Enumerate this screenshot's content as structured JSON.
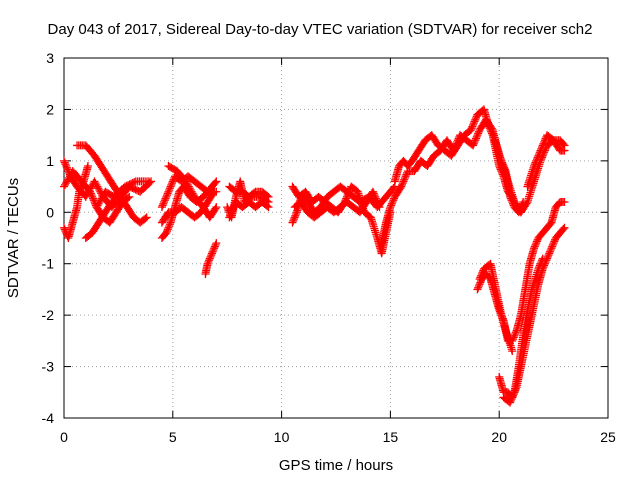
{
  "chart_data": {
    "type": "scatter",
    "title": "Day 043 of 2017, Sidereal Day-to-day VTEC variation (SDTVAR) for receiver sch2",
    "xlabel": "GPS time / hours",
    "ylabel": "SDTVAR / TECUs",
    "xlim": [
      0,
      25
    ],
    "ylim": [
      -4,
      3
    ],
    "xticks": [
      0,
      5,
      10,
      15,
      20,
      25
    ],
    "yticks": [
      -4,
      -3,
      -2,
      -1,
      0,
      1,
      2,
      3
    ],
    "grid": true,
    "marker": "plus",
    "color": "#ff0000",
    "tracks": [
      [
        [
          0.0,
          1.0
        ],
        [
          0.3,
          0.7
        ],
        [
          0.6,
          0.5
        ],
        [
          1.0,
          0.3
        ],
        [
          1.4,
          0.6
        ],
        [
          1.8,
          0.3
        ],
        [
          2.2,
          0.1
        ],
        [
          2.6,
          0.3
        ],
        [
          3.0,
          0.5
        ],
        [
          3.5,
          0.4
        ],
        [
          4.0,
          0.6
        ]
      ],
      [
        [
          0.0,
          0.5
        ],
        [
          0.4,
          0.8
        ],
        [
          0.8,
          0.6
        ],
        [
          1.2,
          0.4
        ],
        [
          1.5,
          0.1
        ],
        [
          1.9,
          0.4
        ],
        [
          2.3,
          0.3
        ],
        [
          2.8,
          0.5
        ],
        [
          3.3,
          0.6
        ],
        [
          3.9,
          0.6
        ]
      ],
      [
        [
          0.0,
          -0.3
        ],
        [
          0.2,
          -0.5
        ],
        [
          0.4,
          -0.2
        ],
        [
          0.6,
          0.1
        ],
        [
          0.7,
          0.4
        ],
        [
          0.9,
          0.6
        ],
        [
          1.1,
          0.9
        ]
      ],
      [
        [
          0.6,
          1.3
        ],
        [
          1.0,
          1.3
        ],
        [
          1.4,
          1.1
        ],
        [
          1.7,
          0.9
        ],
        [
          2.0,
          0.7
        ],
        [
          2.3,
          0.5
        ],
        [
          2.6,
          0.3
        ],
        [
          2.9,
          0.1
        ],
        [
          3.2,
          -0.1
        ],
        [
          3.5,
          -0.2
        ],
        [
          3.8,
          -0.1
        ]
      ],
      [
        [
          1.0,
          -0.5
        ],
        [
          1.3,
          -0.4
        ],
        [
          1.6,
          -0.2
        ],
        [
          1.9,
          0.0
        ],
        [
          2.2,
          0.2
        ],
        [
          2.5,
          0.3
        ],
        [
          2.8,
          0.4
        ]
      ],
      [
        [
          1.5,
          0.1
        ],
        [
          1.8,
          -0.1
        ],
        [
          2.1,
          -0.2
        ],
        [
          2.4,
          0.0
        ],
        [
          2.7,
          0.2
        ],
        [
          3.0,
          0.3
        ]
      ],
      [
        [
          4.5,
          -0.5
        ],
        [
          4.7,
          -0.4
        ],
        [
          4.9,
          -0.2
        ],
        [
          5.1,
          0.1
        ],
        [
          5.3,
          0.4
        ],
        [
          5.5,
          0.5
        ],
        [
          5.8,
          0.3
        ],
        [
          6.1,
          0.2
        ],
        [
          6.4,
          0.3
        ],
        [
          6.8,
          0.5
        ],
        [
          7.0,
          0.6
        ]
      ],
      [
        [
          4.5,
          0.1
        ],
        [
          4.7,
          0.3
        ],
        [
          4.9,
          0.5
        ],
        [
          5.1,
          0.7
        ],
        [
          5.4,
          0.6
        ],
        [
          5.7,
          0.7
        ],
        [
          6.0,
          0.6
        ],
        [
          6.3,
          0.5
        ],
        [
          6.6,
          0.4
        ],
        [
          7.0,
          0.4
        ]
      ],
      [
        [
          4.5,
          -0.2
        ],
        [
          4.8,
          0.0
        ],
        [
          5.1,
          0.0
        ],
        [
          5.4,
          0.1
        ],
        [
          5.7,
          0.0
        ],
        [
          6.0,
          -0.1
        ],
        [
          6.3,
          0.0
        ],
        [
          6.6,
          0.2
        ],
        [
          6.9,
          0.4
        ]
      ],
      [
        [
          4.8,
          0.9
        ],
        [
          5.2,
          0.8
        ],
        [
          5.6,
          0.6
        ],
        [
          6.0,
          0.3
        ],
        [
          6.4,
          0.1
        ],
        [
          6.7,
          -0.1
        ],
        [
          7.0,
          0.1
        ]
      ],
      [
        [
          6.5,
          -1.2
        ],
        [
          6.6,
          -1.0
        ],
        [
          6.7,
          -0.9
        ],
        [
          6.8,
          -0.8
        ],
        [
          6.9,
          -0.7
        ],
        [
          7.0,
          -0.6
        ]
      ],
      [
        [
          7.5,
          0.1
        ],
        [
          7.7,
          -0.1
        ],
        [
          7.9,
          0.3
        ],
        [
          8.1,
          0.6
        ],
        [
          8.3,
          0.2
        ],
        [
          8.6,
          0.3
        ],
        [
          9.0,
          0.3
        ],
        [
          9.4,
          0.2
        ]
      ],
      [
        [
          7.6,
          0.5
        ],
        [
          7.9,
          0.4
        ],
        [
          8.2,
          0.4
        ],
        [
          8.5,
          0.3
        ],
        [
          8.8,
          0.4
        ],
        [
          9.1,
          0.4
        ],
        [
          9.4,
          0.3
        ]
      ],
      [
        [
          7.6,
          -0.1
        ],
        [
          7.9,
          0.2
        ],
        [
          8.2,
          0.1
        ],
        [
          8.5,
          0.2
        ],
        [
          8.8,
          0.1
        ],
        [
          9.1,
          0.2
        ],
        [
          9.4,
          0.1
        ]
      ],
      [
        [
          10.5,
          -0.2
        ],
        [
          10.7,
          0.0
        ],
        [
          10.9,
          0.3
        ],
        [
          11.2,
          0.2
        ],
        [
          11.5,
          0.0
        ],
        [
          11.8,
          0.1
        ],
        [
          12.1,
          0.3
        ],
        [
          12.4,
          0.4
        ],
        [
          12.7,
          0.5
        ],
        [
          13.0,
          0.4
        ],
        [
          13.3,
          0.3
        ],
        [
          13.6,
          0.2
        ],
        [
          14.0,
          0.3
        ],
        [
          14.4,
          0.1
        ],
        [
          14.8,
          0.3
        ],
        [
          15.2,
          0.5
        ]
      ],
      [
        [
          10.5,
          0.5
        ],
        [
          10.8,
          0.3
        ],
        [
          11.1,
          0.4
        ],
        [
          11.4,
          0.2
        ],
        [
          11.7,
          0.3
        ],
        [
          12.0,
          0.2
        ],
        [
          12.3,
          0.1
        ],
        [
          12.6,
          0.0
        ],
        [
          12.9,
          0.2
        ],
        [
          13.2,
          0.5
        ],
        [
          13.5,
          0.4
        ],
        [
          13.8,
          0.0
        ],
        [
          14.1,
          -0.1
        ],
        [
          14.4,
          -0.5
        ],
        [
          14.6,
          -0.8
        ],
        [
          14.8,
          -0.4
        ],
        [
          15.0,
          0.0
        ]
      ],
      [
        [
          10.6,
          0.1
        ],
        [
          10.9,
          0.2
        ],
        [
          11.2,
          0.0
        ],
        [
          11.5,
          -0.1
        ],
        [
          11.8,
          0.0
        ],
        [
          12.1,
          0.1
        ],
        [
          12.4,
          0.0
        ],
        [
          12.7,
          0.1
        ],
        [
          13.0,
          0.2
        ],
        [
          13.3,
          0.1
        ],
        [
          13.6,
          0.0
        ],
        [
          13.9,
          0.2
        ],
        [
          14.2,
          0.4
        ],
        [
          14.5,
          0.1
        ]
      ],
      [
        [
          14.6,
          -0.6
        ],
        [
          14.8,
          -0.2
        ],
        [
          15.0,
          0.1
        ],
        [
          15.2,
          0.3
        ],
        [
          15.5,
          0.5
        ],
        [
          15.8,
          0.8
        ],
        [
          16.1,
          0.8
        ],
        [
          16.4,
          1.0
        ],
        [
          16.7,
          0.9
        ],
        [
          17.0,
          1.1
        ],
        [
          17.3,
          1.2
        ],
        [
          17.6,
          1.4
        ],
        [
          17.9,
          1.2
        ],
        [
          18.2,
          1.5
        ],
        [
          18.5,
          1.4
        ],
        [
          18.8,
          1.3
        ],
        [
          19.1,
          1.6
        ],
        [
          19.4,
          1.8
        ],
        [
          19.7,
          1.6
        ],
        [
          20.0,
          1.1
        ],
        [
          20.3,
          0.8
        ],
        [
          20.5,
          0.3
        ],
        [
          20.7,
          0.1
        ],
        [
          20.9,
          0.0
        ],
        [
          21.1,
          0.2
        ]
      ],
      [
        [
          15.2,
          0.6
        ],
        [
          15.4,
          0.9
        ],
        [
          15.6,
          1.0
        ],
        [
          15.8,
          0.9
        ],
        [
          16.0,
          1.0
        ],
        [
          16.3,
          1.2
        ],
        [
          16.6,
          1.4
        ],
        [
          16.9,
          1.5
        ],
        [
          17.2,
          1.3
        ],
        [
          17.5,
          1.2
        ],
        [
          17.8,
          1.1
        ],
        [
          18.1,
          1.3
        ],
        [
          18.4,
          1.5
        ],
        [
          18.7,
          1.6
        ],
        [
          19.0,
          1.9
        ],
        [
          19.3,
          2.0
        ],
        [
          19.5,
          1.7
        ],
        [
          19.7,
          1.5
        ],
        [
          20.0,
          0.9
        ],
        [
          20.2,
          0.7
        ],
        [
          20.4,
          0.4
        ],
        [
          20.6,
          0.3
        ],
        [
          20.8,
          0.1
        ],
        [
          21.0,
          0.0
        ]
      ],
      [
        [
          19.8,
          1.4
        ],
        [
          20.1,
          1.0
        ],
        [
          20.4,
          0.6
        ],
        [
          20.7,
          0.2
        ],
        [
          21.0,
          0.0
        ],
        [
          21.3,
          0.2
        ],
        [
          21.6,
          0.6
        ],
        [
          21.9,
          1.0
        ],
        [
          22.2,
          1.3
        ],
        [
          22.5,
          1.4
        ],
        [
          22.8,
          1.2
        ],
        [
          23.0,
          1.2
        ]
      ],
      [
        [
          21.3,
          0.5
        ],
        [
          21.6,
          0.9
        ],
        [
          21.9,
          1.2
        ],
        [
          22.2,
          1.5
        ],
        [
          22.5,
          1.4
        ],
        [
          22.8,
          1.4
        ],
        [
          23.0,
          1.3
        ]
      ],
      [
        [
          19.0,
          -1.5
        ],
        [
          19.2,
          -1.3
        ],
        [
          19.4,
          -1.2
        ],
        [
          19.6,
          -1.3
        ],
        [
          19.8,
          -1.6
        ],
        [
          20.0,
          -1.9
        ],
        [
          20.2,
          -2.1
        ],
        [
          20.4,
          -2.5
        ],
        [
          20.6,
          -2.5
        ],
        [
          20.8,
          -2.3
        ],
        [
          21.0,
          -2.0
        ],
        [
          21.2,
          -1.5
        ],
        [
          21.4,
          -1.0
        ],
        [
          21.6,
          -0.7
        ],
        [
          21.8,
          -0.5
        ],
        [
          22.0,
          -0.4
        ],
        [
          22.2,
          -0.3
        ],
        [
          22.4,
          -0.2
        ],
        [
          22.6,
          0.1
        ],
        [
          22.8,
          0.2
        ],
        [
          23.0,
          0.2
        ]
      ],
      [
        [
          20.0,
          -3.2
        ],
        [
          20.2,
          -3.5
        ],
        [
          20.4,
          -3.5
        ],
        [
          20.6,
          -3.6
        ],
        [
          20.8,
          -3.4
        ],
        [
          21.0,
          -3.0
        ],
        [
          21.2,
          -2.6
        ],
        [
          21.4,
          -2.2
        ],
        [
          21.6,
          -1.8
        ],
        [
          21.8,
          -1.4
        ],
        [
          22.0,
          -1.1
        ],
        [
          22.2,
          -0.9
        ],
        [
          22.4,
          -0.7
        ],
        [
          22.6,
          -0.5
        ],
        [
          22.8,
          -0.4
        ],
        [
          23.0,
          -0.3
        ]
      ],
      [
        [
          19.1,
          -1.3
        ],
        [
          19.3,
          -1.1
        ],
        [
          19.6,
          -1.0
        ],
        [
          19.8,
          -1.4
        ],
        [
          20.1,
          -2.0
        ],
        [
          20.3,
          -2.3
        ],
        [
          20.6,
          -2.7
        ]
      ],
      [
        [
          20.2,
          -3.6
        ],
        [
          20.5,
          -3.7
        ],
        [
          20.7,
          -3.5
        ],
        [
          20.9,
          -3.0
        ],
        [
          21.1,
          -2.4
        ],
        [
          21.3,
          -1.9
        ],
        [
          21.5,
          -1.5
        ],
        [
          21.8,
          -1.1
        ],
        [
          22.0,
          -0.9
        ]
      ]
    ]
  }
}
